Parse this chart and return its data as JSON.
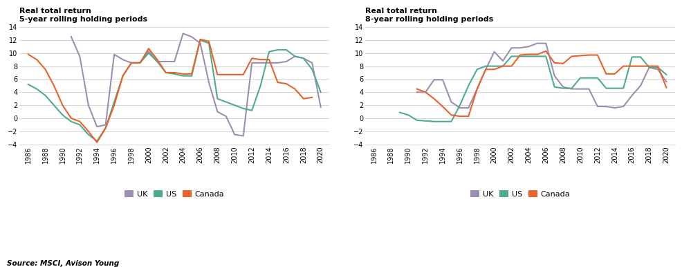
{
  "title_5yr_line1": "Real total return",
  "title_5yr_line2": "5-year rolling holding periods",
  "title_8yr_line1": "Real total return",
  "title_8yr_line2": "8-year rolling holding periods",
  "source": "Source: MSCI, Avison Young",
  "colors": {
    "UK": "#9b8eb2",
    "US": "#4dab8e",
    "Canada": "#e8622a"
  },
  "uk_5yr_x": [
    1991,
    1992,
    1993,
    1994,
    1995,
    1996,
    1997,
    1998,
    1999,
    2000,
    2001,
    2002,
    2003,
    2004,
    2005,
    2006,
    2007,
    2008,
    2009,
    2010,
    2011,
    2012,
    2013,
    2014,
    2015,
    2016,
    2017,
    2018,
    2019,
    2020
  ],
  "uk_5yr_y": [
    12.5,
    9.5,
    2.0,
    -1.3,
    -1.0,
    9.8,
    9.0,
    8.5,
    8.5,
    10.3,
    8.7,
    8.7,
    8.7,
    13.0,
    12.5,
    11.5,
    5.5,
    1.0,
    0.3,
    -2.5,
    -2.7,
    8.5,
    8.5,
    8.5,
    8.5,
    8.7,
    9.5,
    9.2,
    8.5,
    1.7
  ],
  "us_5yr_x": [
    1986,
    1987,
    1988,
    1989,
    1990,
    1991,
    1992,
    1993,
    1994,
    1995,
    1996,
    1997,
    1998,
    1999,
    2000,
    2001,
    2002,
    2003,
    2004,
    2005,
    2006,
    2007,
    2008,
    2009,
    2010,
    2011,
    2012,
    2013,
    2014,
    2015,
    2016,
    2017,
    2018,
    2019,
    2020
  ],
  "us_5yr_y": [
    5.2,
    4.5,
    3.5,
    2.0,
    0.5,
    -0.5,
    -1.0,
    -2.5,
    -3.5,
    -1.5,
    2.5,
    6.5,
    8.5,
    8.5,
    10.0,
    8.7,
    7.0,
    6.8,
    6.5,
    6.5,
    12.0,
    11.5,
    3.0,
    2.5,
    2.0,
    1.5,
    1.2,
    5.0,
    10.2,
    10.5,
    10.5,
    9.5,
    9.2,
    7.5,
    4.0
  ],
  "ca_5yr_x": [
    1986,
    1987,
    1988,
    1989,
    1990,
    1991,
    1992,
    1993,
    1994,
    1995,
    1996,
    1997,
    1998,
    1999,
    2000,
    2001,
    2002,
    2003,
    2004,
    2005,
    2006,
    2007,
    2008,
    2009,
    2010,
    2011,
    2012,
    2013,
    2014,
    2015,
    2016,
    2017,
    2018,
    2019
  ],
  "ca_5yr_y": [
    9.8,
    9.0,
    7.5,
    5.0,
    2.0,
    0.0,
    -0.5,
    -2.0,
    -3.7,
    -1.5,
    2.0,
    6.5,
    8.5,
    8.5,
    10.7,
    9.0,
    7.0,
    7.0,
    6.8,
    6.8,
    12.1,
    11.8,
    6.7,
    6.7,
    6.7,
    6.7,
    9.2,
    9.0,
    9.0,
    5.5,
    5.3,
    4.5,
    3.0,
    3.2
  ],
  "uk_8yr_x": [
    1991,
    1992,
    1993,
    1994,
    1995,
    1996,
    1997,
    1998,
    1999,
    2000,
    2001,
    2002,
    2003,
    2004,
    2005,
    2006,
    2007,
    2008,
    2009,
    2010,
    2011,
    2012,
    2013,
    2014,
    2015,
    2016,
    2017,
    2018,
    2019,
    2020
  ],
  "uk_8yr_y": [
    4.0,
    4.0,
    5.9,
    5.9,
    2.5,
    1.6,
    1.6,
    4.5,
    7.5,
    10.2,
    8.8,
    10.8,
    10.8,
    11.0,
    11.5,
    11.5,
    6.5,
    4.8,
    4.5,
    4.5,
    4.5,
    1.8,
    1.8,
    1.6,
    1.8,
    3.5,
    5.0,
    7.8,
    7.5,
    5.6
  ],
  "us_8yr_x": [
    1989,
    1990,
    1991,
    1992,
    1993,
    1994,
    1995,
    1996,
    1997,
    1998,
    1999,
    2000,
    2001,
    2002,
    2003,
    2004,
    2005,
    2006,
    2007,
    2008,
    2009,
    2010,
    2011,
    2012,
    2013,
    2014,
    2015,
    2016,
    2017,
    2018,
    2019,
    2020
  ],
  "us_8yr_y": [
    0.9,
    0.5,
    -0.3,
    -0.4,
    -0.5,
    -0.5,
    -0.5,
    2.0,
    5.0,
    7.5,
    8.0,
    8.0,
    8.0,
    9.5,
    9.5,
    9.5,
    9.5,
    9.5,
    4.8,
    4.6,
    4.6,
    6.2,
    6.2,
    6.2,
    4.6,
    4.6,
    4.6,
    9.4,
    9.4,
    7.8,
    7.8,
    6.7
  ],
  "ca_8yr_x": [
    1991,
    1992,
    1993,
    1994,
    1995,
    1996,
    1997,
    1998,
    1999,
    2000,
    2001,
    2002,
    2003,
    2004,
    2005,
    2006,
    2007,
    2008,
    2009,
    2010,
    2011,
    2012,
    2013,
    2014,
    2015,
    2016,
    2017,
    2018,
    2019,
    2020
  ],
  "ca_8yr_y": [
    4.5,
    4.0,
    3.0,
    1.8,
    0.5,
    0.3,
    0.3,
    4.5,
    7.5,
    7.5,
    8.0,
    8.0,
    9.7,
    9.8,
    9.8,
    10.3,
    8.5,
    8.4,
    9.5,
    9.6,
    9.7,
    9.7,
    6.8,
    6.8,
    8.0,
    8.0,
    8.0,
    8.0,
    8.0,
    4.7
  ]
}
